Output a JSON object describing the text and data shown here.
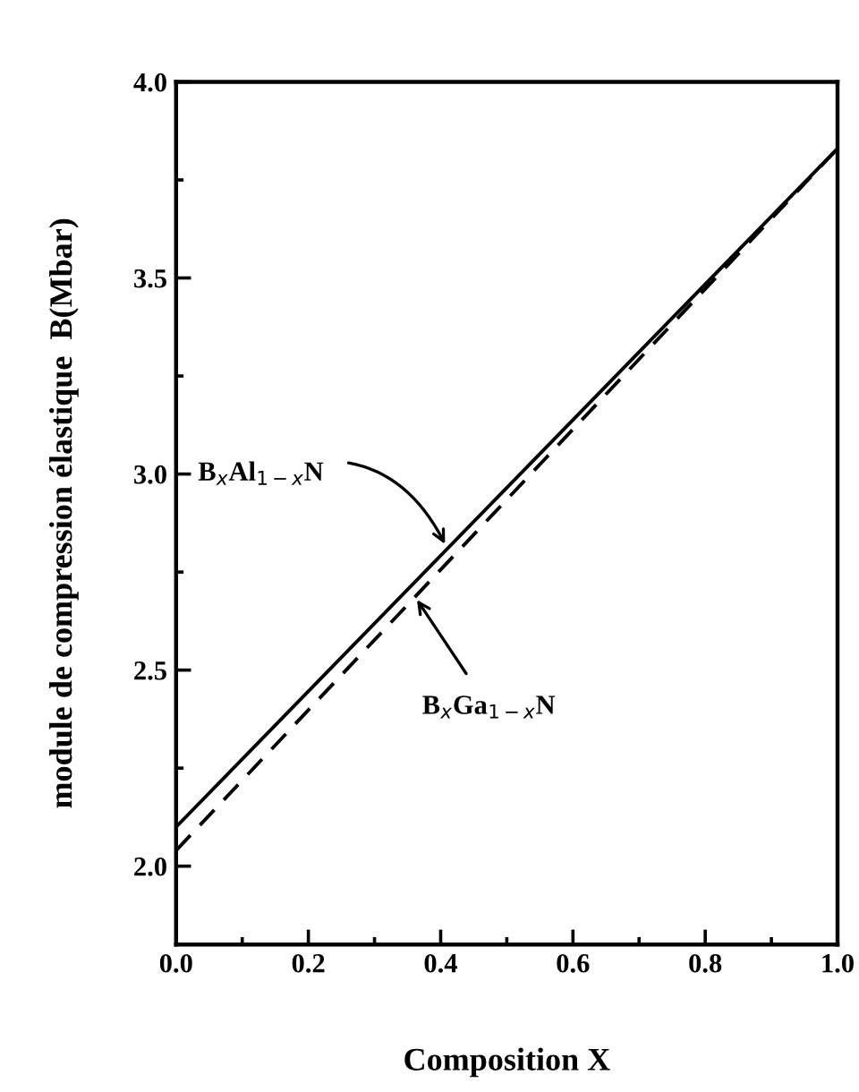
{
  "chart_data": {
    "type": "line",
    "xlabel": "Composition X",
    "ylabel": "module de compression élastique  B(Mbar)",
    "x": [
      0.0,
      1.0
    ],
    "series": [
      {
        "color": "#000000",
        "line_style": "solid",
        "values": [
          2.1,
          3.83
        ]
      },
      {
        "color": "#000000",
        "line_style": "dashed",
        "values": [
          2.04,
          3.83
        ]
      }
    ],
    "annotations": [
      {
        "text": "B$_{x}$Al$_{1−x}$N",
        "x": 0.41,
        "y": 2.81
      },
      {
        "text": "B$_{x}$Ga$_{1−x}$N",
        "x": 0.36,
        "y": 2.69
      }
    ],
    "xlim": [
      0.0,
      1.0
    ],
    "xticks": [
      {
        "value": 0.0,
        "label": "0.0"
      },
      0.2,
      0.4,
      0.6,
      0.8,
      {
        "value": 1.0,
        "label": "1.0"
      }
    ],
    "ylim": [
      1.8,
      4.0
    ],
    "yticks": [
      {
        "value": 2.0,
        "label": "2.0"
      },
      2.5,
      {
        "value": 3.0,
        "label": "3.0"
      },
      3.5,
      {
        "value": 4.0,
        "label": "4.0"
      }
    ],
    "grid": false,
    "legend": false
  }
}
